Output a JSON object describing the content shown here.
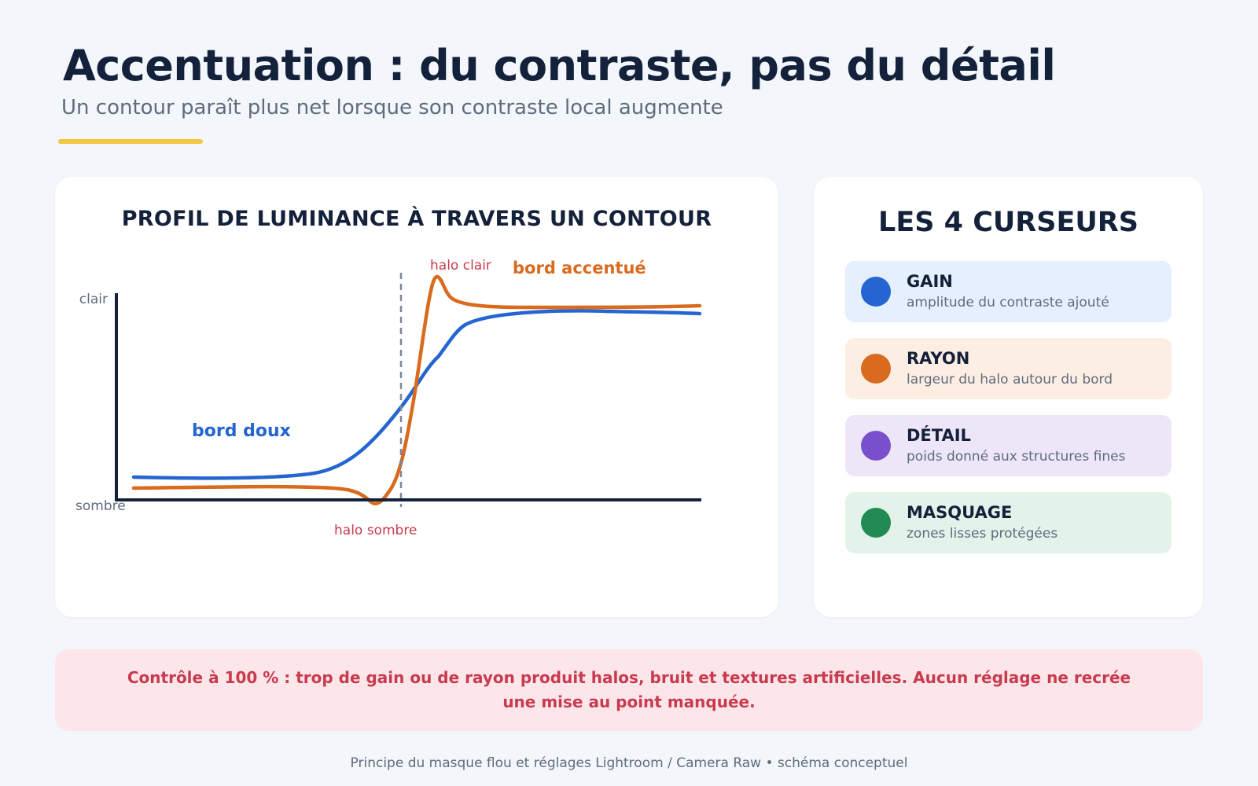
{
  "header": {
    "title": "Accentuation : du contraste, pas du détail",
    "subtitle": "Un contour paraît plus net lorsque son contraste local augmente"
  },
  "chart": {
    "title": "PROFIL DE LUMINANCE À TRAVERS UN CONTOUR",
    "axis_top_label": "clair",
    "axis_bottom_label": "sombre",
    "labels": {
      "soft": "bord doux",
      "sharp": "bord accentué",
      "halo_light": "halo clair",
      "halo_dark": "halo sombre"
    },
    "colors": {
      "soft": "#2565d1",
      "sharp": "#d96a1e",
      "halo": "#c83a4e",
      "axis": "#14213a",
      "edge_marker": "#7a8699"
    }
  },
  "chart_data": {
    "type": "line",
    "title": "PROFIL DE LUMINANCE À TRAVERS UN CONTOUR",
    "xlabel": "",
    "ylabel": "",
    "y_tick_labels": [
      "sombre",
      "clair"
    ],
    "series": [
      {
        "name": "bord doux",
        "shape": "smooth step",
        "low_level": 0.15,
        "high_level": 0.92
      },
      {
        "name": "bord accentué",
        "shape": "step with undershoot and overshoot",
        "low_level": 0.09,
        "high_level": 0.97,
        "undershoot": 0.02,
        "overshoot": 1.1
      }
    ],
    "annotations": [
      "halo clair",
      "halo sombre"
    ],
    "edge_marker": "dashed vertical line at contour"
  },
  "sliders": {
    "title": "LES 4 CURSEURS",
    "items": [
      {
        "name": "GAIN",
        "desc": "amplitude du contraste ajouté",
        "color": "#2565d1",
        "bg": "#e6effd"
      },
      {
        "name": "RAYON",
        "desc": "largeur du halo autour du bord",
        "color": "#d96a1e",
        "bg": "#fdeee3"
      },
      {
        "name": "DÉTAIL",
        "desc": "poids donné aux structures fines",
        "color": "#7a4fcb",
        "bg": "#ede6f9"
      },
      {
        "name": "MASQUAGE",
        "desc": "zones lisses protégées",
        "color": "#228a55",
        "bg": "#e3f3ea"
      }
    ]
  },
  "warning": "Contrôle à 100 % : trop de gain ou de rayon produit halos, bruit et textures artificielles. Aucun réglage ne recrée une mise au point manquée.",
  "footer": "Principe du masque flou et réglages Lightroom / Camera Raw • schéma conceptuel"
}
